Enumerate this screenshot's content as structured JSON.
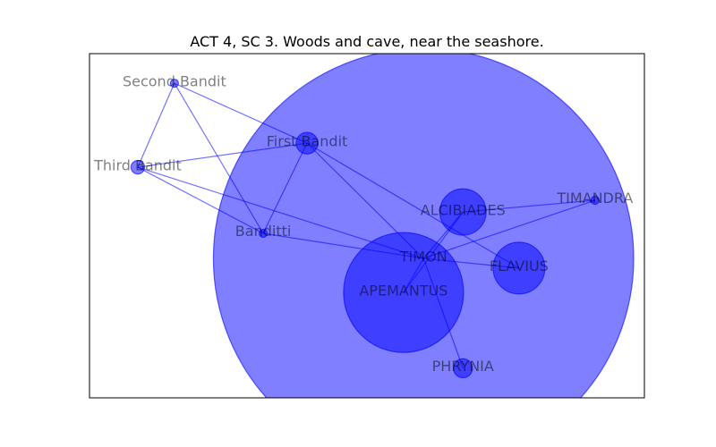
{
  "title": "ACT 4, SC 3. Woods and cave, near the seashore.",
  "colors": {
    "node": "#0000ff",
    "edge": "#0000ff",
    "frame": "#000000",
    "label": "#000000"
  },
  "chart_data": {
    "type": "network",
    "title": "ACT 4, SC 3. Woods and cave, near the seashore.",
    "xlim": [
      0,
      100
    ],
    "ylim": [
      0,
      100
    ],
    "nodes": [
      {
        "id": "second_bandit",
        "label": "Second Bandit",
        "x": 15.3,
        "y": 91.4,
        "size": 0.5
      },
      {
        "id": "first_bandit",
        "label": "First Bandit",
        "x": 39.2,
        "y": 74.0,
        "size": 3
      },
      {
        "id": "third_bandit",
        "label": "Third Bandit",
        "x": 8.7,
        "y": 67.0,
        "size": 1.5
      },
      {
        "id": "banditti",
        "label": "Banditti",
        "x": 31.3,
        "y": 47.8,
        "size": 0.5
      },
      {
        "id": "timon",
        "label": "TIMON",
        "x": 60.2,
        "y": 40.5,
        "size": 76
      },
      {
        "id": "apemantus",
        "label": "APEMANTUS",
        "x": 56.6,
        "y": 30.6,
        "size": 21
      },
      {
        "id": "alcibiades",
        "label": "ALCIBIADES",
        "x": 67.3,
        "y": 54.0,
        "size": 7.5
      },
      {
        "id": "flavius",
        "label": "FLAVIUS",
        "x": 77.4,
        "y": 37.7,
        "size": 8.5
      },
      {
        "id": "timandra",
        "label": "TIMANDRA",
        "x": 91.1,
        "y": 57.4,
        "size": 0.5
      },
      {
        "id": "phrynia",
        "label": "PHRYNIA",
        "x": 67.3,
        "y": 8.6,
        "size": 2.5
      }
    ],
    "edges": [
      [
        "second_bandit",
        "third_bandit"
      ],
      [
        "second_bandit",
        "first_bandit"
      ],
      [
        "second_bandit",
        "banditti"
      ],
      [
        "third_bandit",
        "first_bandit"
      ],
      [
        "third_bandit",
        "banditti"
      ],
      [
        "third_bandit",
        "timon"
      ],
      [
        "first_bandit",
        "banditti"
      ],
      [
        "first_bandit",
        "timon"
      ],
      [
        "first_bandit",
        "flavius"
      ],
      [
        "banditti",
        "timon"
      ],
      [
        "timon",
        "apemantus"
      ],
      [
        "timon",
        "alcibiades"
      ],
      [
        "timon",
        "flavius"
      ],
      [
        "timon",
        "phrynia"
      ],
      [
        "timon",
        "timandra"
      ],
      [
        "alcibiades",
        "timandra"
      ],
      [
        "apemantus",
        "alcibiades"
      ]
    ],
    "grid": false,
    "legend": "none"
  }
}
